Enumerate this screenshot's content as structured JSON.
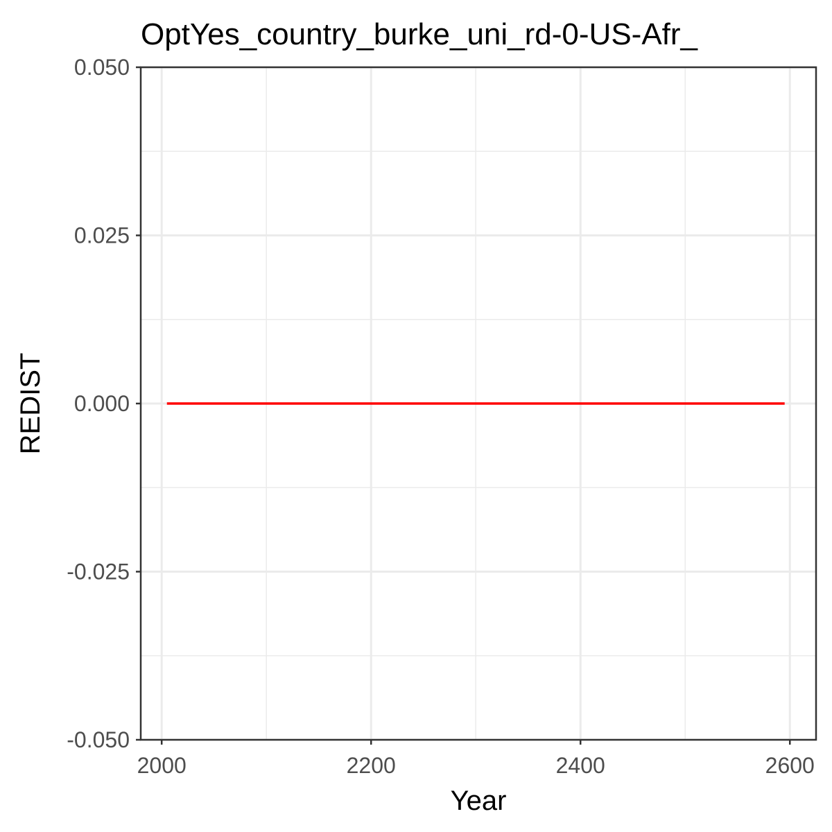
{
  "chart_data": {
    "type": "line",
    "title": "OptYes_country_burke_uni_rd-0-US-Afr_",
    "xlabel": "Year",
    "ylabel": "REDIST",
    "xlim": [
      1980,
      2625
    ],
    "ylim": [
      -0.05,
      0.05
    ],
    "x_ticks": [
      2000,
      2200,
      2400,
      2600
    ],
    "x_tick_labels": [
      "2000",
      "2200",
      "2400",
      "2600"
    ],
    "y_ticks": [
      -0.05,
      -0.025,
      0,
      0.025,
      0.05
    ],
    "y_tick_labels": [
      "-0.050",
      "-0.025",
      "0.000",
      "0.025",
      "0.050"
    ],
    "grid": true,
    "legend": "none",
    "series": [
      {
        "color": "#ff0000",
        "x": [
          2005,
          2595
        ],
        "y": [
          0,
          0
        ]
      }
    ]
  }
}
